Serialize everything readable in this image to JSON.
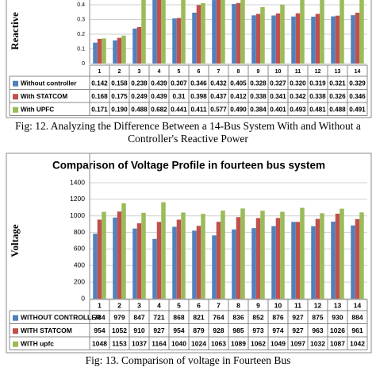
{
  "chart_data": [
    {
      "type": "bar",
      "ylabel": "Reactive",
      "categories": [
        "1",
        "2",
        "3",
        "4",
        "5",
        "6",
        "7",
        "8",
        "9",
        "10",
        "11",
        "12",
        "13",
        "14"
      ],
      "ylim": [
        0,
        0.4
      ],
      "yticks": [
        0,
        0.1,
        0.2,
        0.3,
        0.4
      ],
      "grid": true,
      "series": [
        {
          "name": "Without controller",
          "color": "#4f81bd",
          "values": [
            0.142,
            0.158,
            0.238,
            0.439,
            0.307,
            0.346,
            0.432,
            0.405,
            0.328,
            0.327,
            0.32,
            0.319,
            0.321,
            0.329
          ],
          "value_labels": [
            "0.142",
            "0.158",
            "0.238",
            "0.439",
            "0.307",
            "0.346",
            "0.432",
            "0.405",
            "0.328",
            "0.327",
            "0.320",
            "0.319",
            "0.321",
            "0.329"
          ]
        },
        {
          "name": "With STATCOM",
          "color": "#c0504d",
          "values": [
            0.168,
            0.175,
            0.249,
            0.439,
            0.31,
            0.398,
            0.437,
            0.412,
            0.338,
            0.341,
            0.342,
            0.338,
            0.326,
            0.346
          ],
          "value_labels": [
            "0.168",
            "0.175",
            "0.249",
            "0.439",
            "0.31",
            "0.398",
            "0.437",
            "0.412",
            "0.338",
            "0.341",
            "0.342",
            "0.338",
            "0.326",
            "0.346"
          ]
        },
        {
          "name": "With UPFC",
          "color": "#9bbb59",
          "values": [
            0.171,
            0.19,
            0.488,
            0.682,
            0.441,
            0.411,
            0.577,
            0.49,
            0.384,
            0.401,
            0.493,
            0.481,
            0.488,
            0.491
          ],
          "value_labels": [
            "0.171",
            "0.190",
            "0.488",
            "0.682",
            "0.441",
            "0.411",
            "0.577",
            "0.490",
            "0.384",
            "0.401",
            "0.493",
            "0.481",
            "0.488",
            "0.491"
          ]
        }
      ],
      "caption": "Fig: 12. Analyzing the Difference Between a 14-Bus System With and Without a Controller's Reactive Power"
    },
    {
      "type": "bar",
      "title": "Comparison of Voltage Profile in fourteen bus system",
      "ylabel": "Voltage",
      "categories": [
        "1",
        "2",
        "3",
        "4",
        "5",
        "6",
        "7",
        "8",
        "9",
        "10",
        "11",
        "12",
        "13",
        "14"
      ],
      "ylim": [
        0,
        1400
      ],
      "yticks": [
        0,
        200,
        400,
        600,
        800,
        1000,
        1200,
        1400
      ],
      "grid": true,
      "series": [
        {
          "name": "WITHOUT CONTROLLER",
          "color": "#4f81bd",
          "values": [
            784,
            979,
            847,
            721,
            868,
            821,
            764,
            836,
            852,
            876,
            927,
            875,
            930,
            884
          ]
        },
        {
          "name": "WITH  STATCOM",
          "color": "#c0504d",
          "values": [
            954,
            1052,
            910,
            927,
            954,
            879,
            928,
            985,
            973,
            974,
            927,
            963,
            1026,
            961
          ]
        },
        {
          "name": "WITH  upfc",
          "color": "#9bbb59",
          "values": [
            1048,
            1153,
            1037,
            1164,
            1040,
            1024,
            1063,
            1089,
            1062,
            1049,
            1097,
            1032,
            1087,
            1042
          ]
        }
      ],
      "caption": "Fig: 13. Comparison of voltage in Fourteen Bus"
    }
  ]
}
